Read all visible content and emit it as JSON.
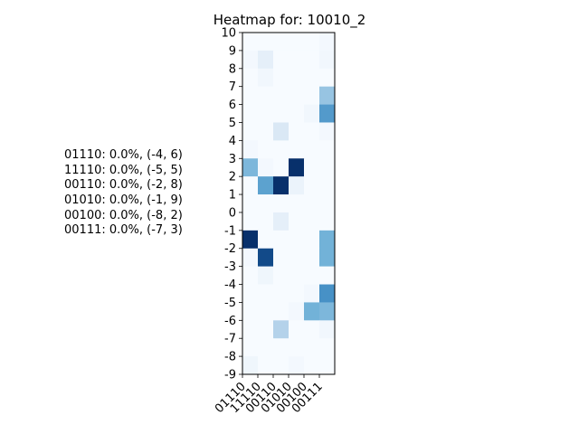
{
  "chart_data": {
    "type": "heatmap",
    "title": "Heatmap for: 10010_2",
    "xlabel": "",
    "ylabel": "",
    "x_categories": [
      "01110",
      "11110",
      "00110",
      "01010",
      "00100",
      "00111"
    ],
    "y_ticks": [
      10,
      9,
      8,
      7,
      6,
      5,
      4,
      3,
      2,
      1,
      0,
      -1,
      -2,
      -3,
      -4,
      -5,
      -6,
      -7,
      -8,
      -9
    ],
    "ylim": [
      -9,
      10
    ],
    "colormap": {
      "low": "#f7fbff",
      "high": "#08306b"
    },
    "values_top_to_bottom": [
      [
        0.0,
        0.0,
        0.0,
        0.0,
        0.0,
        0.02
      ],
      [
        0.02,
        0.09,
        0.0,
        0.0,
        0.0,
        0.03
      ],
      [
        0.0,
        0.03,
        0.0,
        0.0,
        0.0,
        0.0
      ],
      [
        0.0,
        0.0,
        0.0,
        0.0,
        0.0,
        0.38
      ],
      [
        0.0,
        0.0,
        0.0,
        0.0,
        0.03,
        0.58
      ],
      [
        0.0,
        0.0,
        0.15,
        0.0,
        0.0,
        0.02
      ],
      [
        0.02,
        0.0,
        0.0,
        0.0,
        0.0,
        0.0
      ],
      [
        0.45,
        0.02,
        0.0,
        1.0,
        0.0,
        0.0
      ],
      [
        0.0,
        0.55,
        1.0,
        0.06,
        0.0,
        0.0
      ],
      [
        0.0,
        0.0,
        0.0,
        0.0,
        0.0,
        0.0
      ],
      [
        0.0,
        0.0,
        0.09,
        0.0,
        0.0,
        0.0
      ],
      [
        1.0,
        0.0,
        0.0,
        0.0,
        0.0,
        0.48
      ],
      [
        0.02,
        0.9,
        0.0,
        0.0,
        0.0,
        0.48
      ],
      [
        0.0,
        0.04,
        0.0,
        0.0,
        0.0,
        0.0
      ],
      [
        0.0,
        0.0,
        0.0,
        0.0,
        0.02,
        0.62
      ],
      [
        0.0,
        0.0,
        0.0,
        0.02,
        0.48,
        0.45
      ],
      [
        0.0,
        0.0,
        0.3,
        0.0,
        0.0,
        0.03
      ],
      [
        0.0,
        0.0,
        0.0,
        0.0,
        0.0,
        0.0
      ],
      [
        0.04,
        0.0,
        0.0,
        0.02,
        0.0,
        0.0
      ]
    ],
    "grid": false,
    "legend": "none"
  },
  "side_notes": [
    "01110: 0.0%, (-4, 6)",
    "11110: 0.0%, (-5, 5)",
    "00110: 0.0%, (-2, 8)",
    "01010: 0.0%, (-1, 9)",
    "00100: 0.0%, (-8, 2)",
    "00111: 0.0%, (-7, 3)"
  ]
}
